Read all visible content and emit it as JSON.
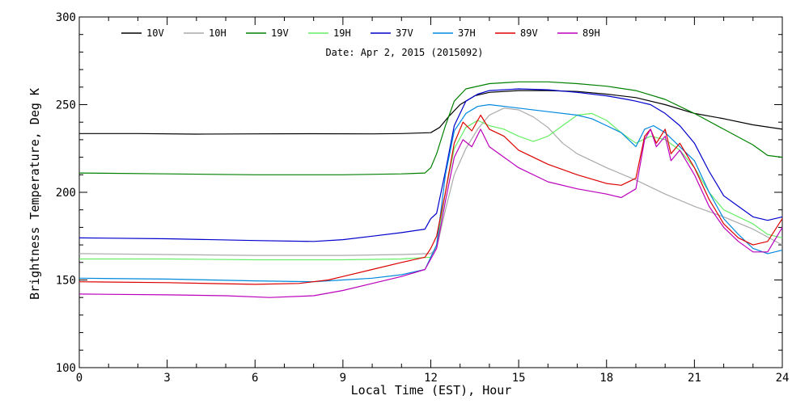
{
  "chart_data": {
    "type": "line",
    "subtitle": "Date: Apr  2, 2015 (2015092)",
    "xlabel": "Local Time (EST), Hour",
    "ylabel": "Brightness Temperature, Deg K",
    "xlim": [
      0,
      24
    ],
    "ylim": [
      100,
      300
    ],
    "xticks": [
      0,
      3,
      6,
      9,
      12,
      15,
      18,
      21,
      24
    ],
    "yticks": [
      100,
      150,
      200,
      250,
      300
    ],
    "grid": false,
    "legend": "top",
    "series": [
      {
        "name": "10V",
        "color": "#000000",
        "points": [
          [
            0,
            233.5
          ],
          [
            2,
            233.5
          ],
          [
            4,
            233.2
          ],
          [
            6,
            233.3
          ],
          [
            8,
            233.4
          ],
          [
            10,
            233.3
          ],
          [
            11,
            233.5
          ],
          [
            12,
            234
          ],
          [
            12.3,
            237
          ],
          [
            12.6,
            243
          ],
          [
            13,
            250
          ],
          [
            13.5,
            255
          ],
          [
            14,
            257
          ],
          [
            15,
            258
          ],
          [
            16,
            258
          ],
          [
            17,
            257.5
          ],
          [
            18,
            256
          ],
          [
            19,
            254
          ],
          [
            20,
            250
          ],
          [
            21,
            245
          ],
          [
            22,
            242
          ],
          [
            23,
            238.5
          ],
          [
            24,
            236
          ]
        ]
      },
      {
        "name": "10H",
        "color": "#aaaaaa",
        "points": [
          [
            0,
            165
          ],
          [
            3,
            164.5
          ],
          [
            6,
            164
          ],
          [
            9,
            164
          ],
          [
            11,
            164.5
          ],
          [
            12,
            165
          ],
          [
            12.2,
            168
          ],
          [
            12.5,
            190
          ],
          [
            12.8,
            210
          ],
          [
            13.2,
            225
          ],
          [
            13.6,
            236
          ],
          [
            14,
            244
          ],
          [
            14.5,
            248
          ],
          [
            15,
            247
          ],
          [
            15.5,
            243
          ],
          [
            16,
            237
          ],
          [
            16.5,
            228
          ],
          [
            17,
            222
          ],
          [
            17.5,
            218
          ],
          [
            18,
            214
          ],
          [
            19,
            207
          ],
          [
            20,
            199
          ],
          [
            21,
            192
          ],
          [
            22,
            186
          ],
          [
            23,
            179
          ],
          [
            24,
            170
          ]
        ]
      },
      {
        "name": "19V",
        "color": "#008000",
        "points": [
          [
            0,
            211
          ],
          [
            3,
            210.5
          ],
          [
            6,
            210
          ],
          [
            9,
            210
          ],
          [
            11,
            210.5
          ],
          [
            11.8,
            211
          ],
          [
            12,
            214
          ],
          [
            12.2,
            222
          ],
          [
            12.5,
            238
          ],
          [
            12.8,
            252
          ],
          [
            13.2,
            259
          ],
          [
            14,
            262
          ],
          [
            15,
            263
          ],
          [
            16,
            263
          ],
          [
            17,
            262
          ],
          [
            18,
            260.5
          ],
          [
            19,
            258
          ],
          [
            20,
            253
          ],
          [
            21,
            245
          ],
          [
            22,
            236
          ],
          [
            23,
            227
          ],
          [
            23.5,
            221
          ],
          [
            24,
            220
          ]
        ]
      },
      {
        "name": "19H",
        "color": "#66ee66",
        "points": [
          [
            0,
            162
          ],
          [
            3,
            162
          ],
          [
            6,
            161.5
          ],
          [
            9,
            161.5
          ],
          [
            11,
            162
          ],
          [
            12,
            163
          ],
          [
            12.2,
            170
          ],
          [
            12.5,
            200
          ],
          [
            12.8,
            225
          ],
          [
            13.2,
            237
          ],
          [
            13.6,
            241
          ],
          [
            14,
            238
          ],
          [
            14.5,
            236
          ],
          [
            15,
            232
          ],
          [
            15.5,
            229
          ],
          [
            16,
            232
          ],
          [
            16.5,
            238
          ],
          [
            17,
            244
          ],
          [
            17.5,
            245
          ],
          [
            18,
            241
          ],
          [
            18.5,
            234
          ],
          [
            19,
            228
          ],
          [
            19.5,
            232
          ],
          [
            20,
            230
          ],
          [
            20.5,
            224
          ],
          [
            21,
            214
          ],
          [
            21.5,
            200
          ],
          [
            22,
            190
          ],
          [
            23,
            182
          ],
          [
            23.5,
            176
          ],
          [
            24,
            174
          ]
        ]
      },
      {
        "name": "37V",
        "color": "#0000cc",
        "points": [
          [
            0,
            174
          ],
          [
            3,
            173.5
          ],
          [
            6,
            172.5
          ],
          [
            8,
            172
          ],
          [
            9,
            173
          ],
          [
            10,
            175
          ],
          [
            11,
            177
          ],
          [
            11.8,
            179
          ],
          [
            12,
            185
          ],
          [
            12.2,
            188
          ],
          [
            12.5,
            212
          ],
          [
            12.8,
            238
          ],
          [
            13.2,
            252
          ],
          [
            13.6,
            256
          ],
          [
            14,
            258
          ],
          [
            15,
            259
          ],
          [
            16,
            258.5
          ],
          [
            17,
            257
          ],
          [
            18,
            255
          ],
          [
            18.7,
            253
          ],
          [
            19,
            252
          ],
          [
            19.5,
            250
          ],
          [
            20,
            245
          ],
          [
            20.5,
            238
          ],
          [
            21,
            228
          ],
          [
            21.5,
            212
          ],
          [
            22,
            198
          ],
          [
            22.5,
            192
          ],
          [
            23,
            186
          ],
          [
            23.5,
            184
          ],
          [
            24,
            186
          ]
        ]
      },
      {
        "name": "37H",
        "color": "#0088dd",
        "points": [
          [
            0,
            151
          ],
          [
            3,
            150.5
          ],
          [
            6,
            149.5
          ],
          [
            8,
            149
          ],
          [
            9,
            150
          ],
          [
            10,
            151
          ],
          [
            11,
            153
          ],
          [
            11.8,
            156
          ],
          [
            12,
            163
          ],
          [
            12.2,
            170
          ],
          [
            12.5,
            210
          ],
          [
            12.8,
            235
          ],
          [
            13.2,
            245
          ],
          [
            13.6,
            249
          ],
          [
            14,
            250
          ],
          [
            15,
            248
          ],
          [
            16,
            246
          ],
          [
            17,
            244
          ],
          [
            17.5,
            242
          ],
          [
            18,
            238
          ],
          [
            18.5,
            234
          ],
          [
            19,
            226
          ],
          [
            19.3,
            236
          ],
          [
            19.6,
            238
          ],
          [
            20,
            234
          ],
          [
            20.5,
            226
          ],
          [
            21,
            218
          ],
          [
            21.5,
            200
          ],
          [
            22,
            185
          ],
          [
            22.5,
            176
          ],
          [
            23,
            168
          ],
          [
            23.5,
            165
          ],
          [
            24,
            167
          ]
        ]
      },
      {
        "name": "89V",
        "color": "#dd0000",
        "points": [
          [
            0,
            149
          ],
          [
            3,
            148.5
          ],
          [
            6,
            147.5
          ],
          [
            7.5,
            148
          ],
          [
            8.5,
            150
          ],
          [
            9,
            152
          ],
          [
            10,
            156
          ],
          [
            11,
            160
          ],
          [
            11.8,
            163
          ],
          [
            12,
            168
          ],
          [
            12.2,
            175
          ],
          [
            12.5,
            200
          ],
          [
            12.8,
            228
          ],
          [
            13.1,
            240
          ],
          [
            13.4,
            235
          ],
          [
            13.7,
            244
          ],
          [
            14,
            236
          ],
          [
            14.5,
            232
          ],
          [
            15,
            224
          ],
          [
            16,
            216
          ],
          [
            17,
            210
          ],
          [
            18,
            205
          ],
          [
            18.5,
            204
          ],
          [
            19,
            208
          ],
          [
            19.3,
            232
          ],
          [
            19.5,
            236
          ],
          [
            19.7,
            228
          ],
          [
            20,
            236
          ],
          [
            20.2,
            222
          ],
          [
            20.5,
            228
          ],
          [
            21,
            214
          ],
          [
            21.5,
            196
          ],
          [
            22,
            182
          ],
          [
            22.5,
            174
          ],
          [
            23,
            170
          ],
          [
            23.5,
            172
          ],
          [
            24,
            185
          ]
        ]
      },
      {
        "name": "89H",
        "color": "#bb00bb",
        "points": [
          [
            0,
            142
          ],
          [
            3,
            141.5
          ],
          [
            5,
            141
          ],
          [
            6.5,
            140
          ],
          [
            8,
            141
          ],
          [
            9,
            144
          ],
          [
            10,
            148
          ],
          [
            11,
            152
          ],
          [
            11.8,
            156
          ],
          [
            12,
            162
          ],
          [
            12.2,
            168
          ],
          [
            12.5,
            195
          ],
          [
            12.8,
            220
          ],
          [
            13.1,
            230
          ],
          [
            13.4,
            226
          ],
          [
            13.7,
            236
          ],
          [
            14,
            226
          ],
          [
            14.5,
            220
          ],
          [
            15,
            214
          ],
          [
            16,
            206
          ],
          [
            17,
            202
          ],
          [
            18,
            199
          ],
          [
            18.5,
            197
          ],
          [
            19,
            202
          ],
          [
            19.3,
            230
          ],
          [
            19.5,
            236
          ],
          [
            19.7,
            226
          ],
          [
            20,
            232
          ],
          [
            20.2,
            218
          ],
          [
            20.5,
            224
          ],
          [
            21,
            210
          ],
          [
            21.5,
            192
          ],
          [
            22,
            180
          ],
          [
            22.5,
            172
          ],
          [
            23,
            166
          ],
          [
            23.5,
            166
          ],
          [
            24,
            180
          ]
        ]
      }
    ]
  }
}
